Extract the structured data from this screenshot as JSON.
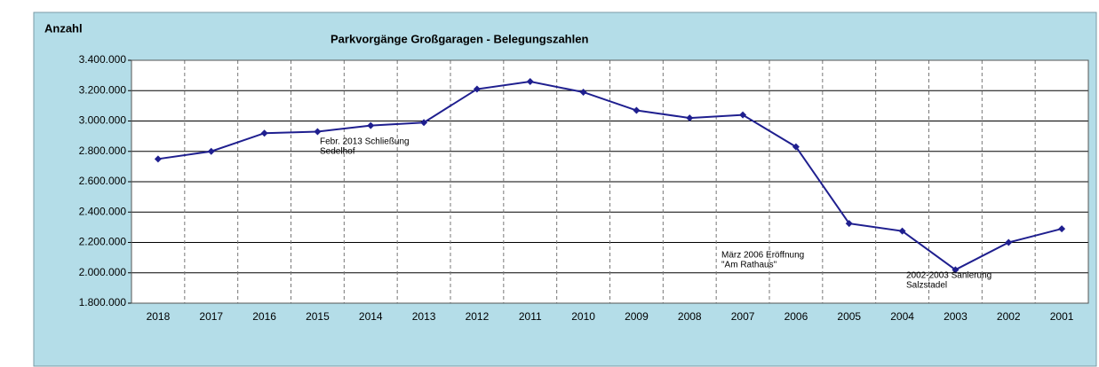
{
  "chart_data": {
    "type": "line",
    "title": "Parkvorgänge Großgaragen - Belegungszahlen",
    "y_label": "Anzahl",
    "categories": [
      "2018",
      "2017",
      "2016",
      "2015",
      "2014",
      "2013",
      "2012",
      "2011",
      "2010",
      "2009",
      "2008",
      "2007",
      "2006",
      "2005",
      "2004",
      "2003",
      "2002",
      "2001"
    ],
    "series": [
      {
        "name": "Parkvorgänge",
        "color": "#1f1f8f",
        "values": [
          2750000,
          2800000,
          2920000,
          2930000,
          2970000,
          2990000,
          3210000,
          3260000,
          3190000,
          3070000,
          3020000,
          3040000,
          2830000,
          2325000,
          2275000,
          2020000,
          2200000,
          2290000
        ]
      }
    ],
    "ylim": [
      1800000,
      3400000
    ],
    "yticks": [
      {
        "value": 1800000,
        "label": "1.800.000"
      },
      {
        "value": 2000000,
        "label": "2.000.000"
      },
      {
        "value": 2200000,
        "label": "2.200.000"
      },
      {
        "value": 2400000,
        "label": "2.400.000"
      },
      {
        "value": 2600000,
        "label": "2.600.000"
      },
      {
        "value": 2800000,
        "label": "2.800.000"
      },
      {
        "value": 3000000,
        "label": "3.000.000"
      },
      {
        "value": 3200000,
        "label": "3.200.000"
      },
      {
        "value": 3400000,
        "label": "3.400.000"
      }
    ],
    "grid": true,
    "annotations": [
      [
        "Febr. 2013 Schließung",
        "Sedelhof"
      ],
      [
        "März 2006 Eröffnung",
        "\"Am Rathaus\""
      ],
      [
        "2002-2003 Sanierung",
        "Salzstadel"
      ]
    ]
  }
}
